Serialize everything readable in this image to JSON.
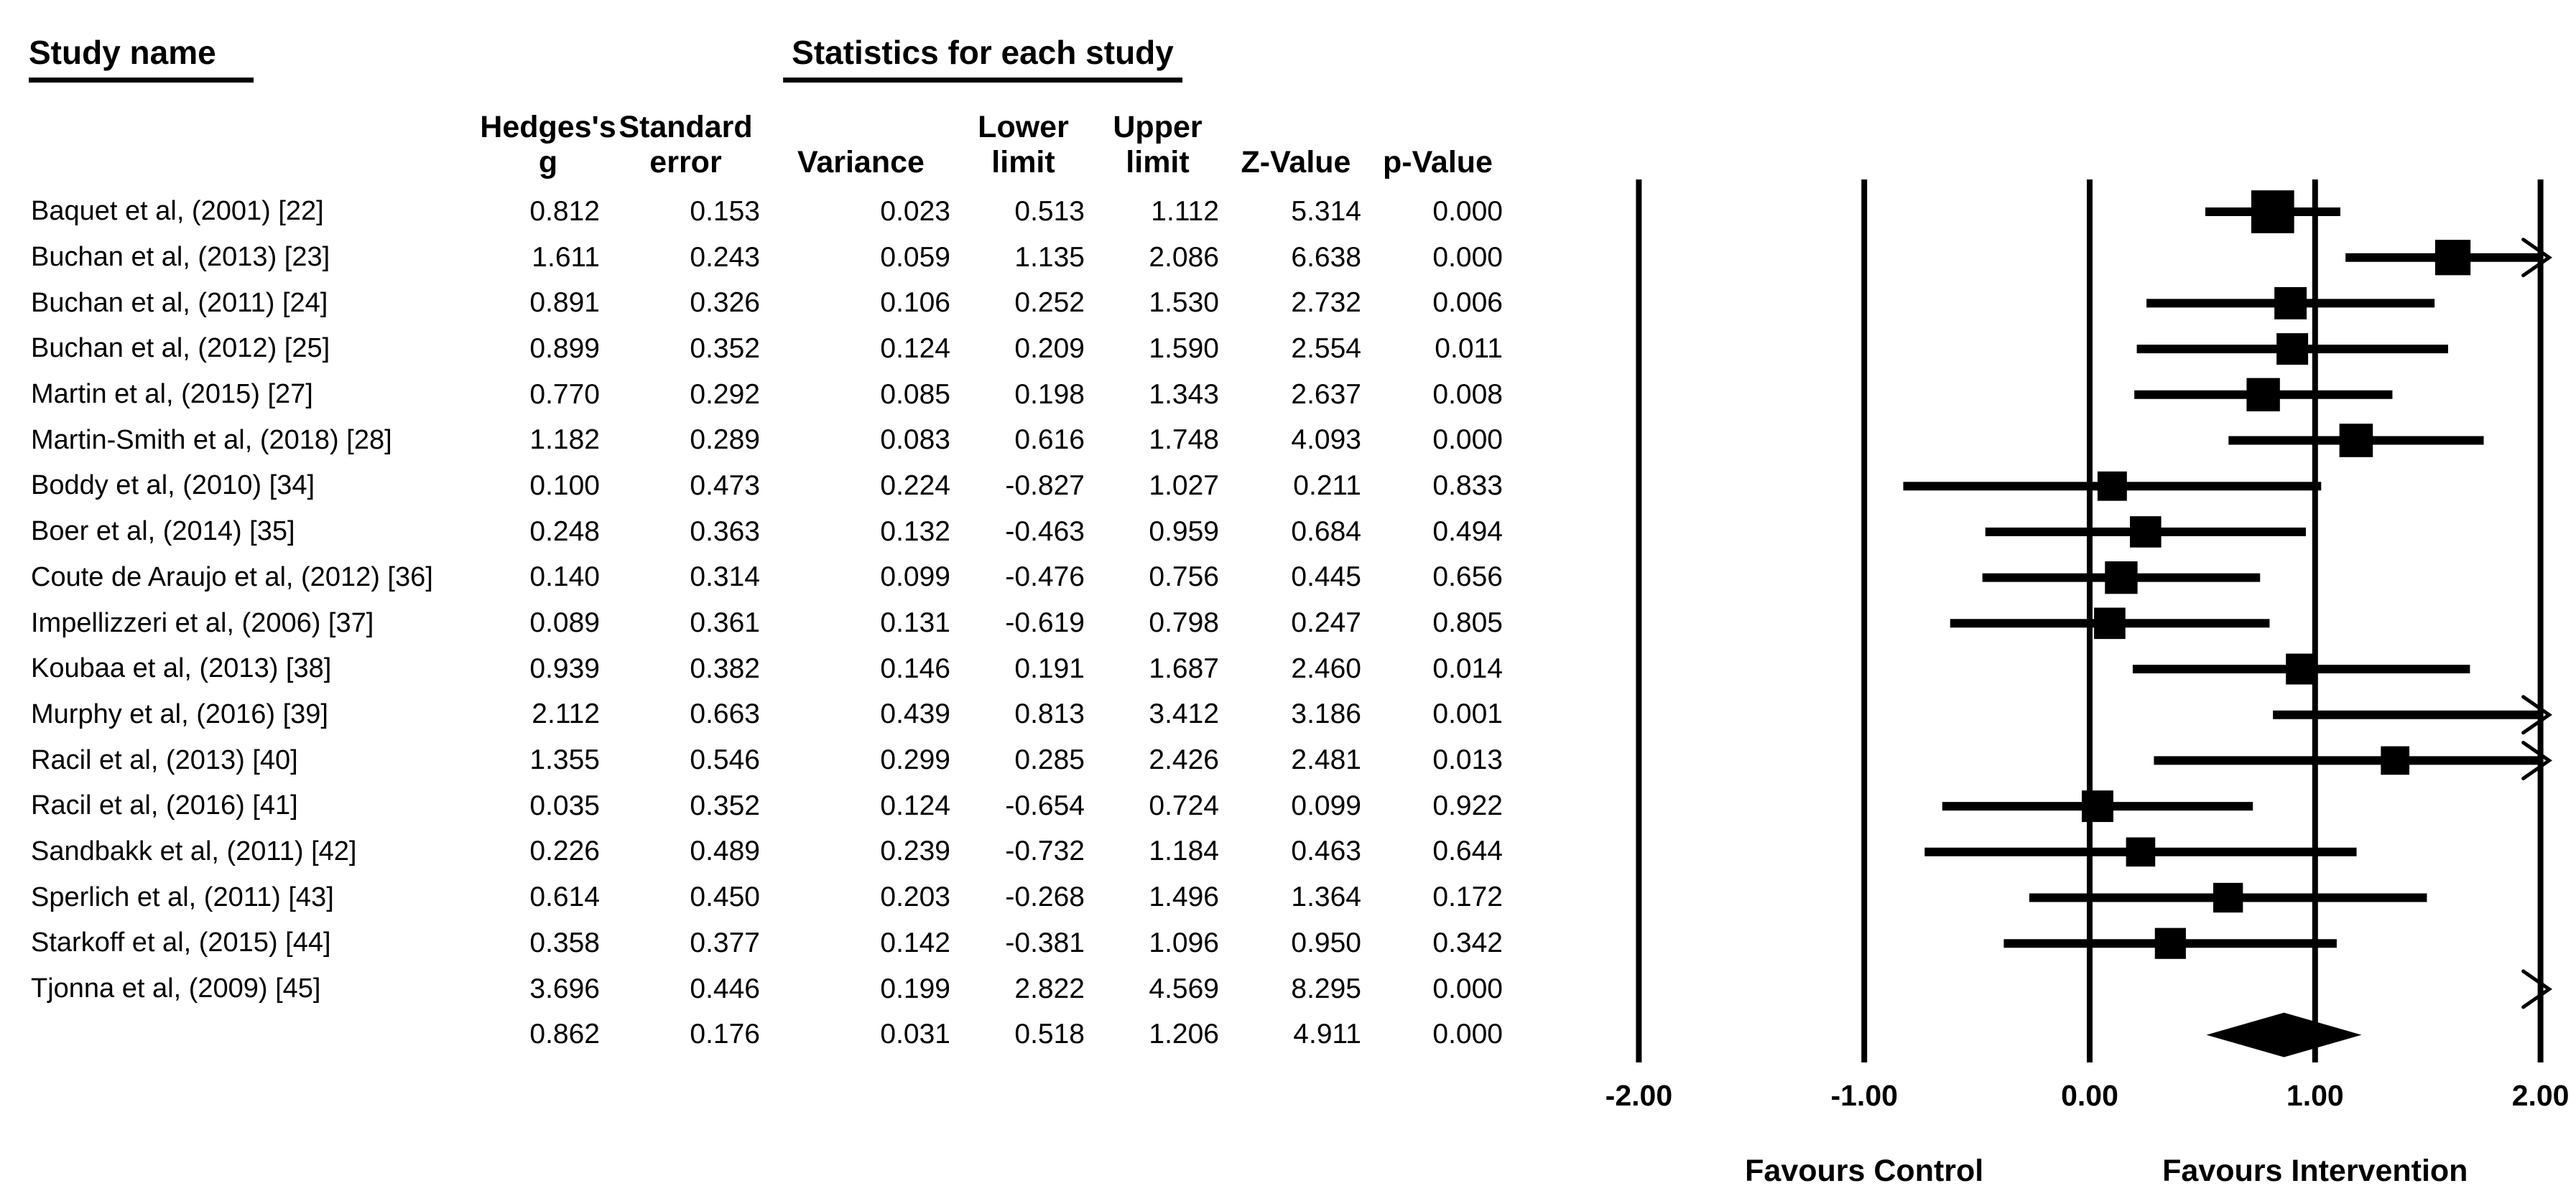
{
  "headers": {
    "study": "Study name",
    "stats": "Statistics for each study",
    "columns": [
      {
        "l1": "Hedges's",
        "l2": "g"
      },
      {
        "l1": "Standard",
        "l2": "error"
      },
      {
        "l1": "",
        "l2": "Variance"
      },
      {
        "l1": "Lower",
        "l2": "limit"
      },
      {
        "l1": "Upper",
        "l2": "limit"
      },
      {
        "l1": "",
        "l2": "Z-Value"
      },
      {
        "l1": "",
        "l2": "p-Value"
      }
    ]
  },
  "chart_data": {
    "type": "forest",
    "effect_measure": "Hedges's g",
    "axis": {
      "min": -2.0,
      "max": 2.0,
      "tick_values": [
        -2,
        -1,
        0,
        1,
        2
      ],
      "tick_labels": [
        "-2.00",
        "-1.00",
        "0.00",
        "1.00",
        "2.00"
      ]
    },
    "footer_left": "Favours Control",
    "footer_right": "Favours Intervention",
    "marker_color": "#000000",
    "studies": [
      {
        "name": "Baquet et al, (2001) [22]",
        "g": 0.812,
        "se": 0.153,
        "var": 0.023,
        "lower": 0.513,
        "upper": 1.112,
        "z": 5.314,
        "p": 0.0
      },
      {
        "name": "Buchan et al, (2013) [23]",
        "g": 1.611,
        "se": 0.243,
        "var": 0.059,
        "lower": 1.135,
        "upper": 2.086,
        "z": 6.638,
        "p": 0.0
      },
      {
        "name": "Buchan et al, (2011) [24]",
        "g": 0.891,
        "se": 0.326,
        "var": 0.106,
        "lower": 0.252,
        "upper": 1.53,
        "z": 2.732,
        "p": 0.006
      },
      {
        "name": "Buchan et al, (2012) [25]",
        "g": 0.899,
        "se": 0.352,
        "var": 0.124,
        "lower": 0.209,
        "upper": 1.59,
        "z": 2.554,
        "p": 0.011
      },
      {
        "name": "Martin et al, (2015) [27]",
        "g": 0.77,
        "se": 0.292,
        "var": 0.085,
        "lower": 0.198,
        "upper": 1.343,
        "z": 2.637,
        "p": 0.008
      },
      {
        "name": "Martin-Smith et al, (2018) [28]",
        "g": 1.182,
        "se": 0.289,
        "var": 0.083,
        "lower": 0.616,
        "upper": 1.748,
        "z": 4.093,
        "p": 0.0
      },
      {
        "name": "Boddy et al, (2010) [34]",
        "g": 0.1,
        "se": 0.473,
        "var": 0.224,
        "lower": -0.827,
        "upper": 1.027,
        "z": 0.211,
        "p": 0.833
      },
      {
        "name": "Boer et al, (2014) [35]",
        "g": 0.248,
        "se": 0.363,
        "var": 0.132,
        "lower": -0.463,
        "upper": 0.959,
        "z": 0.684,
        "p": 0.494
      },
      {
        "name": "Coute de Araujo et al, (2012) [36]",
        "g": 0.14,
        "se": 0.314,
        "var": 0.099,
        "lower": -0.476,
        "upper": 0.756,
        "z": 0.445,
        "p": 0.656
      },
      {
        "name": "Impellizzeri et al, (2006) [37]",
        "g": 0.089,
        "se": 0.361,
        "var": 0.131,
        "lower": -0.619,
        "upper": 0.798,
        "z": 0.247,
        "p": 0.805
      },
      {
        "name": "Koubaa et al, (2013) [38]",
        "g": 0.939,
        "se": 0.382,
        "var": 0.146,
        "lower": 0.191,
        "upper": 1.687,
        "z": 2.46,
        "p": 0.014
      },
      {
        "name": "Murphy et al, (2016) [39]",
        "g": 2.112,
        "se": 0.663,
        "var": 0.439,
        "lower": 0.813,
        "upper": 3.412,
        "z": 3.186,
        "p": 0.001
      },
      {
        "name": "Racil et al, (2013) [40]",
        "g": 1.355,
        "se": 0.546,
        "var": 0.299,
        "lower": 0.285,
        "upper": 2.426,
        "z": 2.481,
        "p": 0.013
      },
      {
        "name": "Racil et al, (2016) [41]",
        "g": 0.035,
        "se": 0.352,
        "var": 0.124,
        "lower": -0.654,
        "upper": 0.724,
        "z": 0.099,
        "p": 0.922
      },
      {
        "name": "Sandbakk et al, (2011) [42]",
        "g": 0.226,
        "se": 0.489,
        "var": 0.239,
        "lower": -0.732,
        "upper": 1.184,
        "z": 0.463,
        "p": 0.644
      },
      {
        "name": "Sperlich et al, (2011) [43]",
        "g": 0.614,
        "se": 0.45,
        "var": 0.203,
        "lower": -0.268,
        "upper": 1.496,
        "z": 1.364,
        "p": 0.172
      },
      {
        "name": "Starkoff et al, (2015) [44]",
        "g": 0.358,
        "se": 0.377,
        "var": 0.142,
        "lower": -0.381,
        "upper": 1.096,
        "z": 0.95,
        "p": 0.342
      },
      {
        "name": "Tjonna et al, (2009) [45]",
        "g": 3.696,
        "se": 0.446,
        "var": 0.199,
        "lower": 2.822,
        "upper": 4.569,
        "z": 8.295,
        "p": 0.0
      }
    ],
    "overall": {
      "name": "",
      "g": 0.862,
      "se": 0.176,
      "var": 0.031,
      "lower": 0.518,
      "upper": 1.206,
      "z": 4.911,
      "p": 0.0
    }
  }
}
